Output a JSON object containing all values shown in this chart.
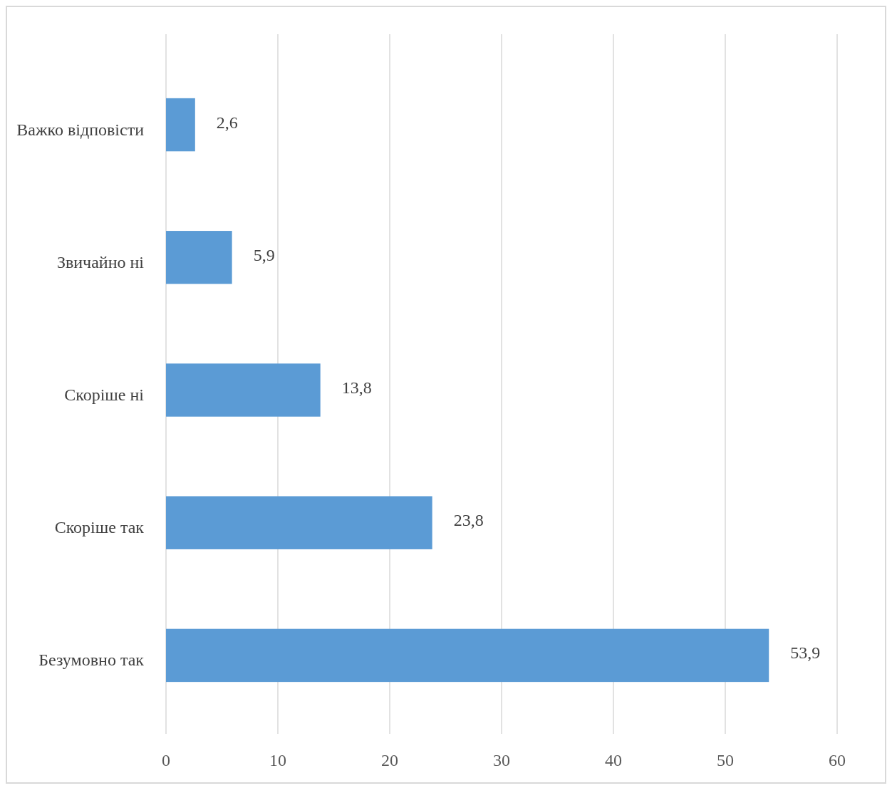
{
  "chart_data": {
    "type": "bar",
    "orientation": "horizontal",
    "categories": [
      "Важко відповісти",
      "Звичайно ні",
      "Скоріше ні",
      "Скоріше так",
      "Безумовно так"
    ],
    "values": [
      2.6,
      5.9,
      13.8,
      23.8,
      53.9
    ],
    "value_labels": [
      "2,6",
      "5,9",
      "13,8",
      "23,8",
      "53,9"
    ],
    "color": "#5b9bd5",
    "xlim": [
      0,
      60
    ],
    "xticks": [
      0,
      10,
      20,
      30,
      40,
      50,
      60
    ],
    "grid": "x"
  }
}
